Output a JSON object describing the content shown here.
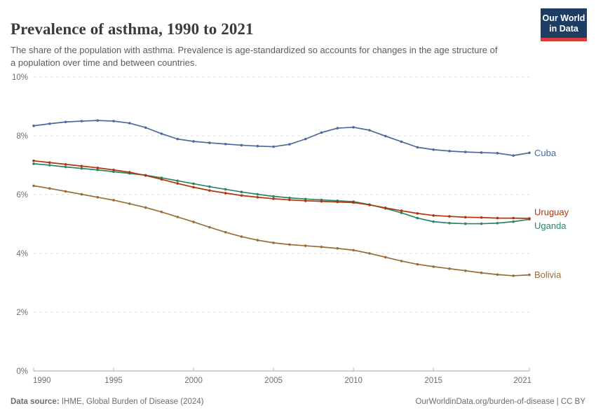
{
  "header": {
    "title": "Prevalence of asthma, 1990 to 2021",
    "subtitle": "The share of the population with asthma. Prevalence is age-standardized so accounts for changes in the age structure of a population over time and between countries.",
    "logo": {
      "line1": "Our World",
      "line2": "in Data",
      "bg_color": "#1D3D63",
      "stripe_color": "#D73C39"
    }
  },
  "chart_data": {
    "type": "line",
    "title": "Prevalence of asthma, 1990 to 2021",
    "xlabel": "",
    "ylabel": "",
    "ylim": [
      0,
      10
    ],
    "grid": "horizontal-dashed",
    "legend_position": "right-of-line-ends",
    "x": [
      1990,
      1991,
      1992,
      1993,
      1994,
      1995,
      1996,
      1997,
      1998,
      1999,
      2000,
      2001,
      2002,
      2003,
      2004,
      2005,
      2006,
      2007,
      2008,
      2009,
      2010,
      2011,
      2012,
      2013,
      2014,
      2015,
      2016,
      2017,
      2018,
      2019,
      2020,
      2021
    ],
    "x_ticks": [
      {
        "v": 1990,
        "label": "1990"
      },
      {
        "v": 1995,
        "label": "1995"
      },
      {
        "v": 2000,
        "label": "2000"
      },
      {
        "v": 2005,
        "label": "2005"
      },
      {
        "v": 2010,
        "label": "2010"
      },
      {
        "v": 2015,
        "label": "2015"
      },
      {
        "v": 2021,
        "label": "2021"
      }
    ],
    "y_ticks": [
      {
        "v": 0,
        "label": "0%"
      },
      {
        "v": 2,
        "label": "2%"
      },
      {
        "v": 4,
        "label": "4%"
      },
      {
        "v": 6,
        "label": "6%"
      },
      {
        "v": 8,
        "label": "8%"
      },
      {
        "v": 10,
        "label": "10%"
      }
    ],
    "series": [
      {
        "name": "Cuba",
        "color": "#4C6A9C",
        "label_dy": 0,
        "values": [
          8.34,
          8.41,
          8.47,
          8.5,
          8.52,
          8.5,
          8.43,
          8.28,
          8.07,
          7.89,
          7.81,
          7.76,
          7.72,
          7.68,
          7.65,
          7.63,
          7.71,
          7.89,
          8.11,
          8.26,
          8.29,
          8.19,
          7.99,
          7.8,
          7.61,
          7.53,
          7.48,
          7.45,
          7.43,
          7.41,
          7.33,
          7.42
        ]
      },
      {
        "name": "Uruguay",
        "color": "#B13507",
        "label_dy": -9,
        "values": [
          7.15,
          7.09,
          7.03,
          6.97,
          6.91,
          6.84,
          6.76,
          6.65,
          6.52,
          6.38,
          6.25,
          6.14,
          6.05,
          5.97,
          5.91,
          5.86,
          5.82,
          5.79,
          5.77,
          5.75,
          5.73,
          5.65,
          5.55,
          5.45,
          5.36,
          5.29,
          5.26,
          5.23,
          5.22,
          5.2,
          5.2,
          5.19
        ]
      },
      {
        "name": "Uganda",
        "color": "#2C8465",
        "label_dy": 9,
        "values": [
          7.05,
          7.0,
          6.94,
          6.89,
          6.84,
          6.78,
          6.72,
          6.66,
          6.57,
          6.47,
          6.37,
          6.27,
          6.18,
          6.09,
          6.01,
          5.94,
          5.89,
          5.85,
          5.82,
          5.79,
          5.76,
          5.66,
          5.53,
          5.38,
          5.2,
          5.08,
          5.03,
          5.01,
          5.01,
          5.03,
          5.08,
          5.16
        ]
      },
      {
        "name": "Bolivia",
        "color": "#996D39",
        "label_dy": 0,
        "values": [
          6.3,
          6.21,
          6.11,
          6.01,
          5.91,
          5.81,
          5.69,
          5.56,
          5.41,
          5.24,
          5.07,
          4.89,
          4.72,
          4.57,
          4.45,
          4.36,
          4.3,
          4.26,
          4.22,
          4.17,
          4.11,
          4.0,
          3.87,
          3.74,
          3.63,
          3.55,
          3.48,
          3.41,
          3.34,
          3.28,
          3.24,
          3.27
        ]
      }
    ]
  },
  "footer": {
    "source_label": "Data source:",
    "source_value": " IHME, Global Burden of Disease (2024)",
    "link": "OurWorldinData.org/burden-of-disease",
    "license": " | CC BY"
  }
}
